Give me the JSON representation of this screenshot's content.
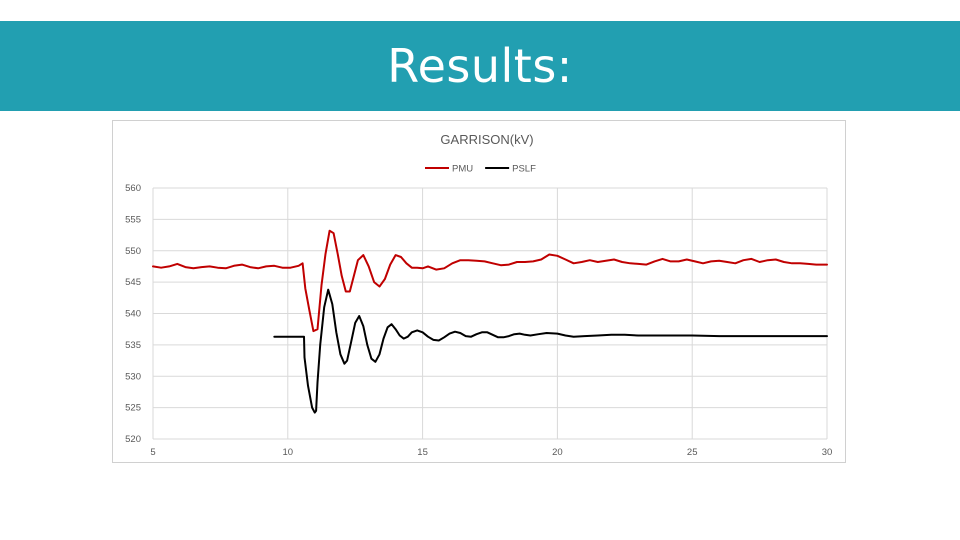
{
  "slide": {
    "title": "Results:",
    "banner_color": "#229fb1"
  },
  "chart_data": {
    "type": "line",
    "title": "GARRISON(kV)",
    "xlabel": "",
    "ylabel": "",
    "xlim": [
      5,
      30
    ],
    "ylim": [
      520,
      560
    ],
    "x_ticks": [
      5,
      10,
      15,
      20,
      25,
      30
    ],
    "y_ticks": [
      520,
      525,
      530,
      535,
      540,
      545,
      550,
      555,
      560
    ],
    "grid": true,
    "legend_position": "top",
    "series": [
      {
        "name": "PMU",
        "color": "#c00000",
        "x": [
          5,
          5.3,
          5.6,
          5.9,
          6.2,
          6.5,
          6.8,
          7.1,
          7.4,
          7.7,
          8.0,
          8.3,
          8.6,
          8.9,
          9.2,
          9.5,
          9.8,
          10.1,
          10.4,
          10.55,
          10.65,
          10.8,
          10.95,
          11.1,
          11.25,
          11.4,
          11.55,
          11.7,
          11.85,
          12.0,
          12.15,
          12.3,
          12.45,
          12.6,
          12.8,
          13.0,
          13.2,
          13.4,
          13.6,
          13.8,
          14.0,
          14.2,
          14.4,
          14.6,
          14.8,
          15.0,
          15.2,
          15.5,
          15.8,
          16.1,
          16.4,
          16.7,
          17.0,
          17.3,
          17.6,
          17.9,
          18.2,
          18.5,
          18.8,
          19.1,
          19.4,
          19.7,
          20.0,
          20.3,
          20.6,
          20.9,
          21.2,
          21.5,
          21.8,
          22.1,
          22.4,
          22.7,
          23.0,
          23.3,
          23.6,
          23.9,
          24.2,
          24.5,
          24.8,
          25.1,
          25.4,
          25.7,
          26.0,
          26.3,
          26.6,
          26.9,
          27.2,
          27.5,
          27.8,
          28.1,
          28.4,
          28.7,
          29.0,
          29.3,
          29.6,
          30.0
        ],
        "y": [
          547.5,
          547.3,
          547.5,
          547.9,
          547.4,
          547.2,
          547.4,
          547.5,
          547.3,
          547.2,
          547.6,
          547.8,
          547.4,
          547.2,
          547.5,
          547.6,
          547.3,
          547.3,
          547.6,
          548.0,
          544.0,
          540.5,
          537.2,
          537.5,
          544.5,
          549.5,
          553.2,
          552.8,
          549.5,
          546.0,
          543.5,
          543.5,
          546.0,
          548.5,
          549.3,
          547.5,
          545.0,
          544.3,
          545.5,
          547.8,
          549.3,
          549.0,
          548.0,
          547.3,
          547.3,
          547.2,
          547.5,
          547.0,
          547.2,
          548.0,
          548.5,
          548.5,
          548.4,
          548.3,
          548.0,
          547.7,
          547.8,
          548.2,
          548.2,
          548.3,
          548.6,
          549.4,
          549.2,
          548.6,
          548.0,
          548.2,
          548.5,
          548.2,
          548.4,
          548.6,
          548.2,
          548.0,
          547.9,
          547.8,
          548.3,
          548.7,
          548.3,
          548.3,
          548.6,
          548.3,
          548.0,
          548.3,
          548.4,
          548.2,
          548.0,
          548.5,
          548.7,
          548.2,
          548.5,
          548.6,
          548.2,
          548.0,
          548.0,
          547.9,
          547.8,
          547.8
        ]
      },
      {
        "name": "PSLF",
        "color": "#000000",
        "x": [
          9.5,
          10.6,
          10.62,
          10.75,
          10.9,
          11.0,
          11.05,
          11.1,
          11.2,
          11.35,
          11.5,
          11.65,
          11.8,
          11.95,
          12.1,
          12.2,
          12.35,
          12.5,
          12.65,
          12.8,
          12.95,
          13.1,
          13.25,
          13.4,
          13.55,
          13.7,
          13.85,
          14.0,
          14.15,
          14.3,
          14.45,
          14.6,
          14.8,
          15.0,
          15.2,
          15.4,
          15.6,
          15.8,
          16.0,
          16.2,
          16.4,
          16.6,
          16.8,
          17.0,
          17.2,
          17.4,
          17.6,
          17.8,
          18.0,
          18.2,
          18.4,
          18.6,
          18.8,
          19.0,
          19.3,
          19.6,
          20.0,
          20.3,
          20.6,
          21.0,
          21.5,
          22.0,
          22.5,
          23.0,
          24.0,
          25.0,
          26.0,
          27.0,
          28.0,
          29.0,
          30.0
        ],
        "y": [
          536.3,
          536.3,
          533.0,
          528.5,
          525.0,
          524.2,
          524.5,
          529.0,
          535.0,
          541.0,
          543.8,
          541.5,
          537.0,
          533.5,
          532.0,
          532.5,
          535.5,
          538.5,
          539.6,
          538.0,
          535.0,
          532.8,
          532.3,
          533.5,
          536.0,
          537.8,
          538.3,
          537.5,
          536.5,
          536.0,
          536.3,
          537.0,
          537.3,
          537.0,
          536.3,
          535.8,
          535.7,
          536.2,
          536.8,
          537.1,
          536.9,
          536.4,
          536.3,
          536.7,
          537.0,
          537.0,
          536.6,
          536.2,
          536.2,
          536.4,
          536.7,
          536.8,
          536.6,
          536.5,
          536.7,
          536.9,
          536.8,
          536.5,
          536.3,
          536.4,
          536.5,
          536.6,
          536.6,
          536.5,
          536.5,
          536.5,
          536.4,
          536.4,
          536.4,
          536.4,
          536.4
        ]
      }
    ]
  }
}
